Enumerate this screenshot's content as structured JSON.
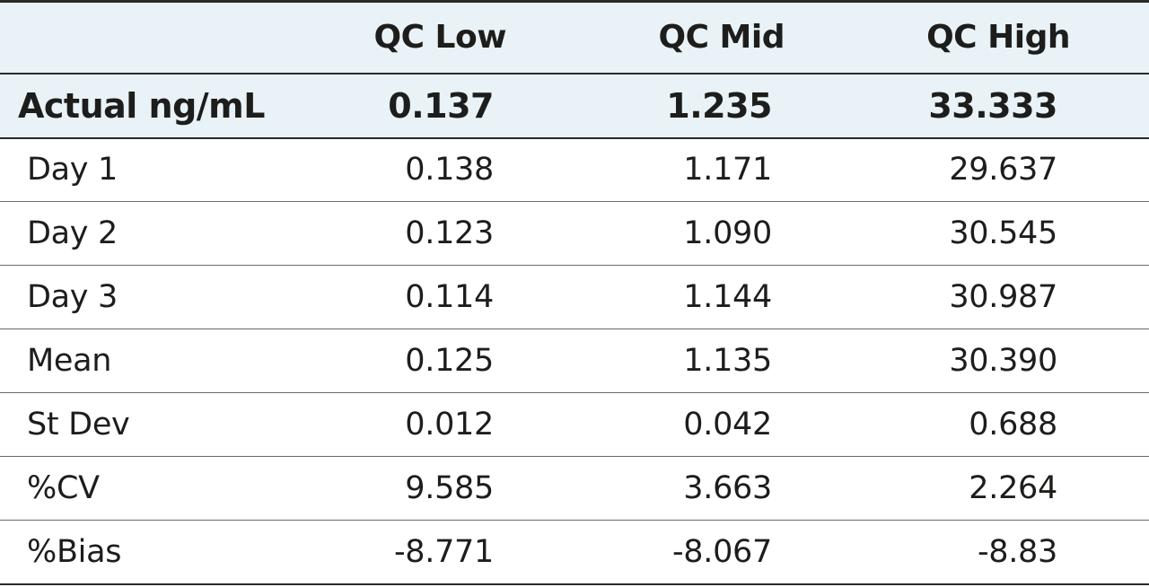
{
  "table": {
    "columns": [
      "",
      "QC Low",
      "QC Mid",
      "QC High"
    ],
    "actual": {
      "label": "Actual ng/mL",
      "values": [
        "0.137",
        "1.235",
        "33.333"
      ]
    },
    "rows": [
      {
        "label": "Day 1",
        "values": [
          "0.138",
          "1.171",
          "29.637"
        ]
      },
      {
        "label": "Day 2",
        "values": [
          "0.123",
          "1.090",
          "30.545"
        ]
      },
      {
        "label": "Day 3",
        "values": [
          "0.114",
          "1.144",
          "30.987"
        ]
      },
      {
        "label": "Mean",
        "values": [
          "0.125",
          "1.135",
          "30.390"
        ]
      },
      {
        "label": "St Dev",
        "values": [
          "0.012",
          "0.042",
          "0.688"
        ]
      },
      {
        "label": "%CV",
        "values": [
          "9.585",
          "3.663",
          "2.264"
        ]
      },
      {
        "label": "%Bias",
        "values": [
          "-8.771",
          "-8.067",
          "-8.83"
        ]
      }
    ]
  }
}
